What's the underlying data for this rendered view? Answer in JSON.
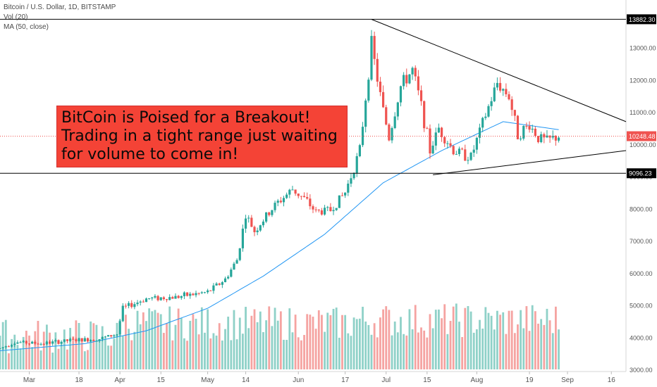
{
  "legend": {
    "symbol": "Bitcoin / U.S. Dollar, 1D, BITSTAMP",
    "volume": "Vol (20)",
    "ma": "MA (50, close)"
  },
  "callout": {
    "lines": [
      "BitCoin is Poised for a Breakout!",
      "Trading in a tight range just waiting",
      "for volume to come in!"
    ]
  },
  "colors": {
    "up": "#26a69a",
    "down": "#ef5350",
    "vol_up": "#8fd1c8",
    "vol_down": "#f5a3a1",
    "ma": "#2196f3",
    "callout": "#f44336",
    "price_line": "#ef5350"
  },
  "chart_data": {
    "type": "candlestick",
    "x_range": [
      "2019-02-19",
      "2019-09-21"
    ],
    "y_range": [
      3000,
      14000
    ],
    "x_ticks": [
      "Mar",
      "18",
      "Apr",
      "15",
      "May",
      "14",
      "Jun",
      "17",
      "Jul",
      "15",
      "Aug",
      "19",
      "Sep",
      "16"
    ],
    "y_ticks": [
      "13000.00",
      "12000.00",
      "11000.00",
      "10000.00",
      "9000.00",
      "8000.00",
      "7000.00",
      "6000.00",
      "5000.00",
      "4000.00",
      "3000.00"
    ],
    "price_labels": [
      "13882.30",
      "10248.48",
      "9096.23"
    ],
    "last_price": 10248.48,
    "horizontal_levels": [
      13882.3,
      9096.23
    ],
    "trendlines": [
      {
        "from": [
          "2019-06-26",
          13880
        ],
        "to": [
          "2019-09-21",
          10700
        ]
      },
      {
        "from": [
          "2019-07-17",
          9050
        ],
        "to": [
          "2019-09-21",
          9800
        ]
      }
    ],
    "keypoints": [
      [
        "2019-02-19",
        3650
      ],
      [
        "2019-02-24",
        3850
      ],
      [
        "2019-03-05",
        3800
      ],
      [
        "2019-03-15",
        3900
      ],
      [
        "2019-03-25",
        3950
      ],
      [
        "2019-03-31",
        4100
      ],
      [
        "2019-04-02",
        4900
      ],
      [
        "2019-04-10",
        5200
      ],
      [
        "2019-04-20",
        5250
      ],
      [
        "2019-05-01",
        5400
      ],
      [
        "2019-05-07",
        5800
      ],
      [
        "2019-05-11",
        6400
      ],
      [
        "2019-05-14",
        7800
      ],
      [
        "2019-05-17",
        7300
      ],
      [
        "2019-05-24",
        8100
      ],
      [
        "2019-05-30",
        8600
      ],
      [
        "2019-06-03",
        8300
      ],
      [
        "2019-06-07",
        7900
      ],
      [
        "2019-06-12",
        7950
      ],
      [
        "2019-06-17",
        8500
      ],
      [
        "2019-06-22",
        9800
      ],
      [
        "2019-06-26",
        13100
      ],
      [
        "2019-06-29",
        11500
      ],
      [
        "2019-07-02",
        10200
      ],
      [
        "2019-07-06",
        11800
      ],
      [
        "2019-07-10",
        12300
      ],
      [
        "2019-07-13",
        11200
      ],
      [
        "2019-07-16",
        9800
      ],
      [
        "2019-07-19",
        10500
      ],
      [
        "2019-07-24",
        9800
      ],
      [
        "2019-07-30",
        9600
      ],
      [
        "2019-08-04",
        10900
      ],
      [
        "2019-08-08",
        11900
      ],
      [
        "2019-08-12",
        11500
      ],
      [
        "2019-08-15",
        10300
      ],
      [
        "2019-08-19",
        10600
      ],
      [
        "2019-08-22",
        10200
      ],
      [
        "2019-08-25",
        10100
      ],
      [
        "2019-08-29",
        10248
      ]
    ],
    "ma50_keypoints": [
      [
        "2019-02-19",
        3580
      ],
      [
        "2019-03-20",
        3800
      ],
      [
        "2019-04-10",
        4200
      ],
      [
        "2019-05-01",
        4900
      ],
      [
        "2019-05-20",
        5900
      ],
      [
        "2019-06-10",
        7200
      ],
      [
        "2019-06-30",
        8800
      ],
      [
        "2019-07-20",
        9800
      ],
      [
        "2019-08-10",
        10700
      ],
      [
        "2019-08-29",
        10450
      ]
    ],
    "volume_scale": [
      0,
      1
    ],
    "volume_note": "volume bars shown relative (0-1 of max)"
  }
}
